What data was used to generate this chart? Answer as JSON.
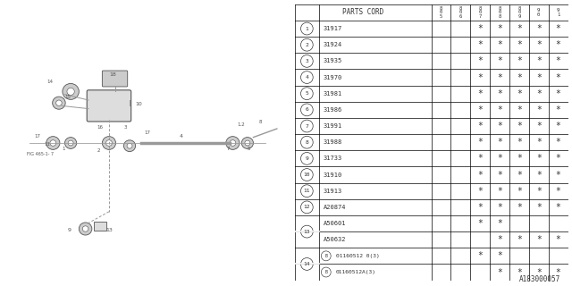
{
  "title": "A183000057",
  "parts_cord_label": "PARTS CORD",
  "year_headers": [
    [
      "8",
      "0",
      "5"
    ],
    [
      "8",
      "0",
      "6"
    ],
    [
      "8",
      "0",
      "7"
    ],
    [
      "8",
      "0",
      "8"
    ],
    [
      "8",
      "0",
      "9"
    ],
    [
      "9",
      "0"
    ],
    [
      "9",
      "1"
    ]
  ],
  "rows": [
    {
      "num": "1",
      "circle": true,
      "code": "31917",
      "marks": [
        false,
        false,
        true,
        true,
        true,
        true,
        true
      ],
      "merged": false,
      "b": false
    },
    {
      "num": "2",
      "circle": true,
      "code": "31924",
      "marks": [
        false,
        false,
        true,
        true,
        true,
        true,
        true
      ],
      "merged": false,
      "b": false
    },
    {
      "num": "3",
      "circle": true,
      "code": "31935",
      "marks": [
        false,
        false,
        true,
        true,
        true,
        true,
        true
      ],
      "merged": false,
      "b": false
    },
    {
      "num": "4",
      "circle": true,
      "code": "31970",
      "marks": [
        false,
        false,
        true,
        true,
        true,
        true,
        true
      ],
      "merged": false,
      "b": false
    },
    {
      "num": "5",
      "circle": true,
      "code": "31981",
      "marks": [
        false,
        false,
        true,
        true,
        true,
        true,
        true
      ],
      "merged": false,
      "b": false
    },
    {
      "num": "6",
      "circle": true,
      "code": "31986",
      "marks": [
        false,
        false,
        true,
        true,
        true,
        true,
        true
      ],
      "merged": false,
      "b": false
    },
    {
      "num": "7",
      "circle": true,
      "code": "31991",
      "marks": [
        false,
        false,
        true,
        true,
        true,
        true,
        true
      ],
      "merged": false,
      "b": false
    },
    {
      "num": "8",
      "circle": true,
      "code": "31988",
      "marks": [
        false,
        false,
        true,
        true,
        true,
        true,
        true
      ],
      "merged": false,
      "b": false
    },
    {
      "num": "9",
      "circle": true,
      "code": "31733",
      "marks": [
        false,
        false,
        true,
        true,
        true,
        true,
        true
      ],
      "merged": false,
      "b": false
    },
    {
      "num": "10",
      "circle": true,
      "code": "31910",
      "marks": [
        false,
        false,
        true,
        true,
        true,
        true,
        true
      ],
      "merged": false,
      "b": false
    },
    {
      "num": "11",
      "circle": true,
      "code": "31913",
      "marks": [
        false,
        false,
        true,
        true,
        true,
        true,
        true
      ],
      "merged": false,
      "b": false
    },
    {
      "num": "12",
      "circle": true,
      "code": "A20874",
      "marks": [
        false,
        false,
        true,
        true,
        true,
        true,
        true
      ],
      "merged": false,
      "b": false
    },
    {
      "num": "13",
      "circle": false,
      "code": "A50601",
      "marks": [
        false,
        false,
        true,
        true,
        false,
        false,
        false
      ],
      "merged": true,
      "b": false,
      "merge_first": true
    },
    {
      "num": "13",
      "circle": false,
      "code": "A50632",
      "marks": [
        false,
        false,
        false,
        true,
        true,
        true,
        true
      ],
      "merged": true,
      "b": false,
      "merge_first": false
    },
    {
      "num": "14",
      "circle": false,
      "code": "01160512 0(3)",
      "marks": [
        false,
        false,
        true,
        true,
        false,
        false,
        false
      ],
      "merged": true,
      "b": true,
      "merge_first": true
    },
    {
      "num": "14",
      "circle": false,
      "code": "01160512A(3)",
      "marks": [
        false,
        false,
        false,
        true,
        true,
        true,
        true
      ],
      "merged": true,
      "b": true,
      "merge_first": false
    }
  ],
  "bg_color": "#ffffff",
  "lc": "#000000",
  "tc": "#333333"
}
